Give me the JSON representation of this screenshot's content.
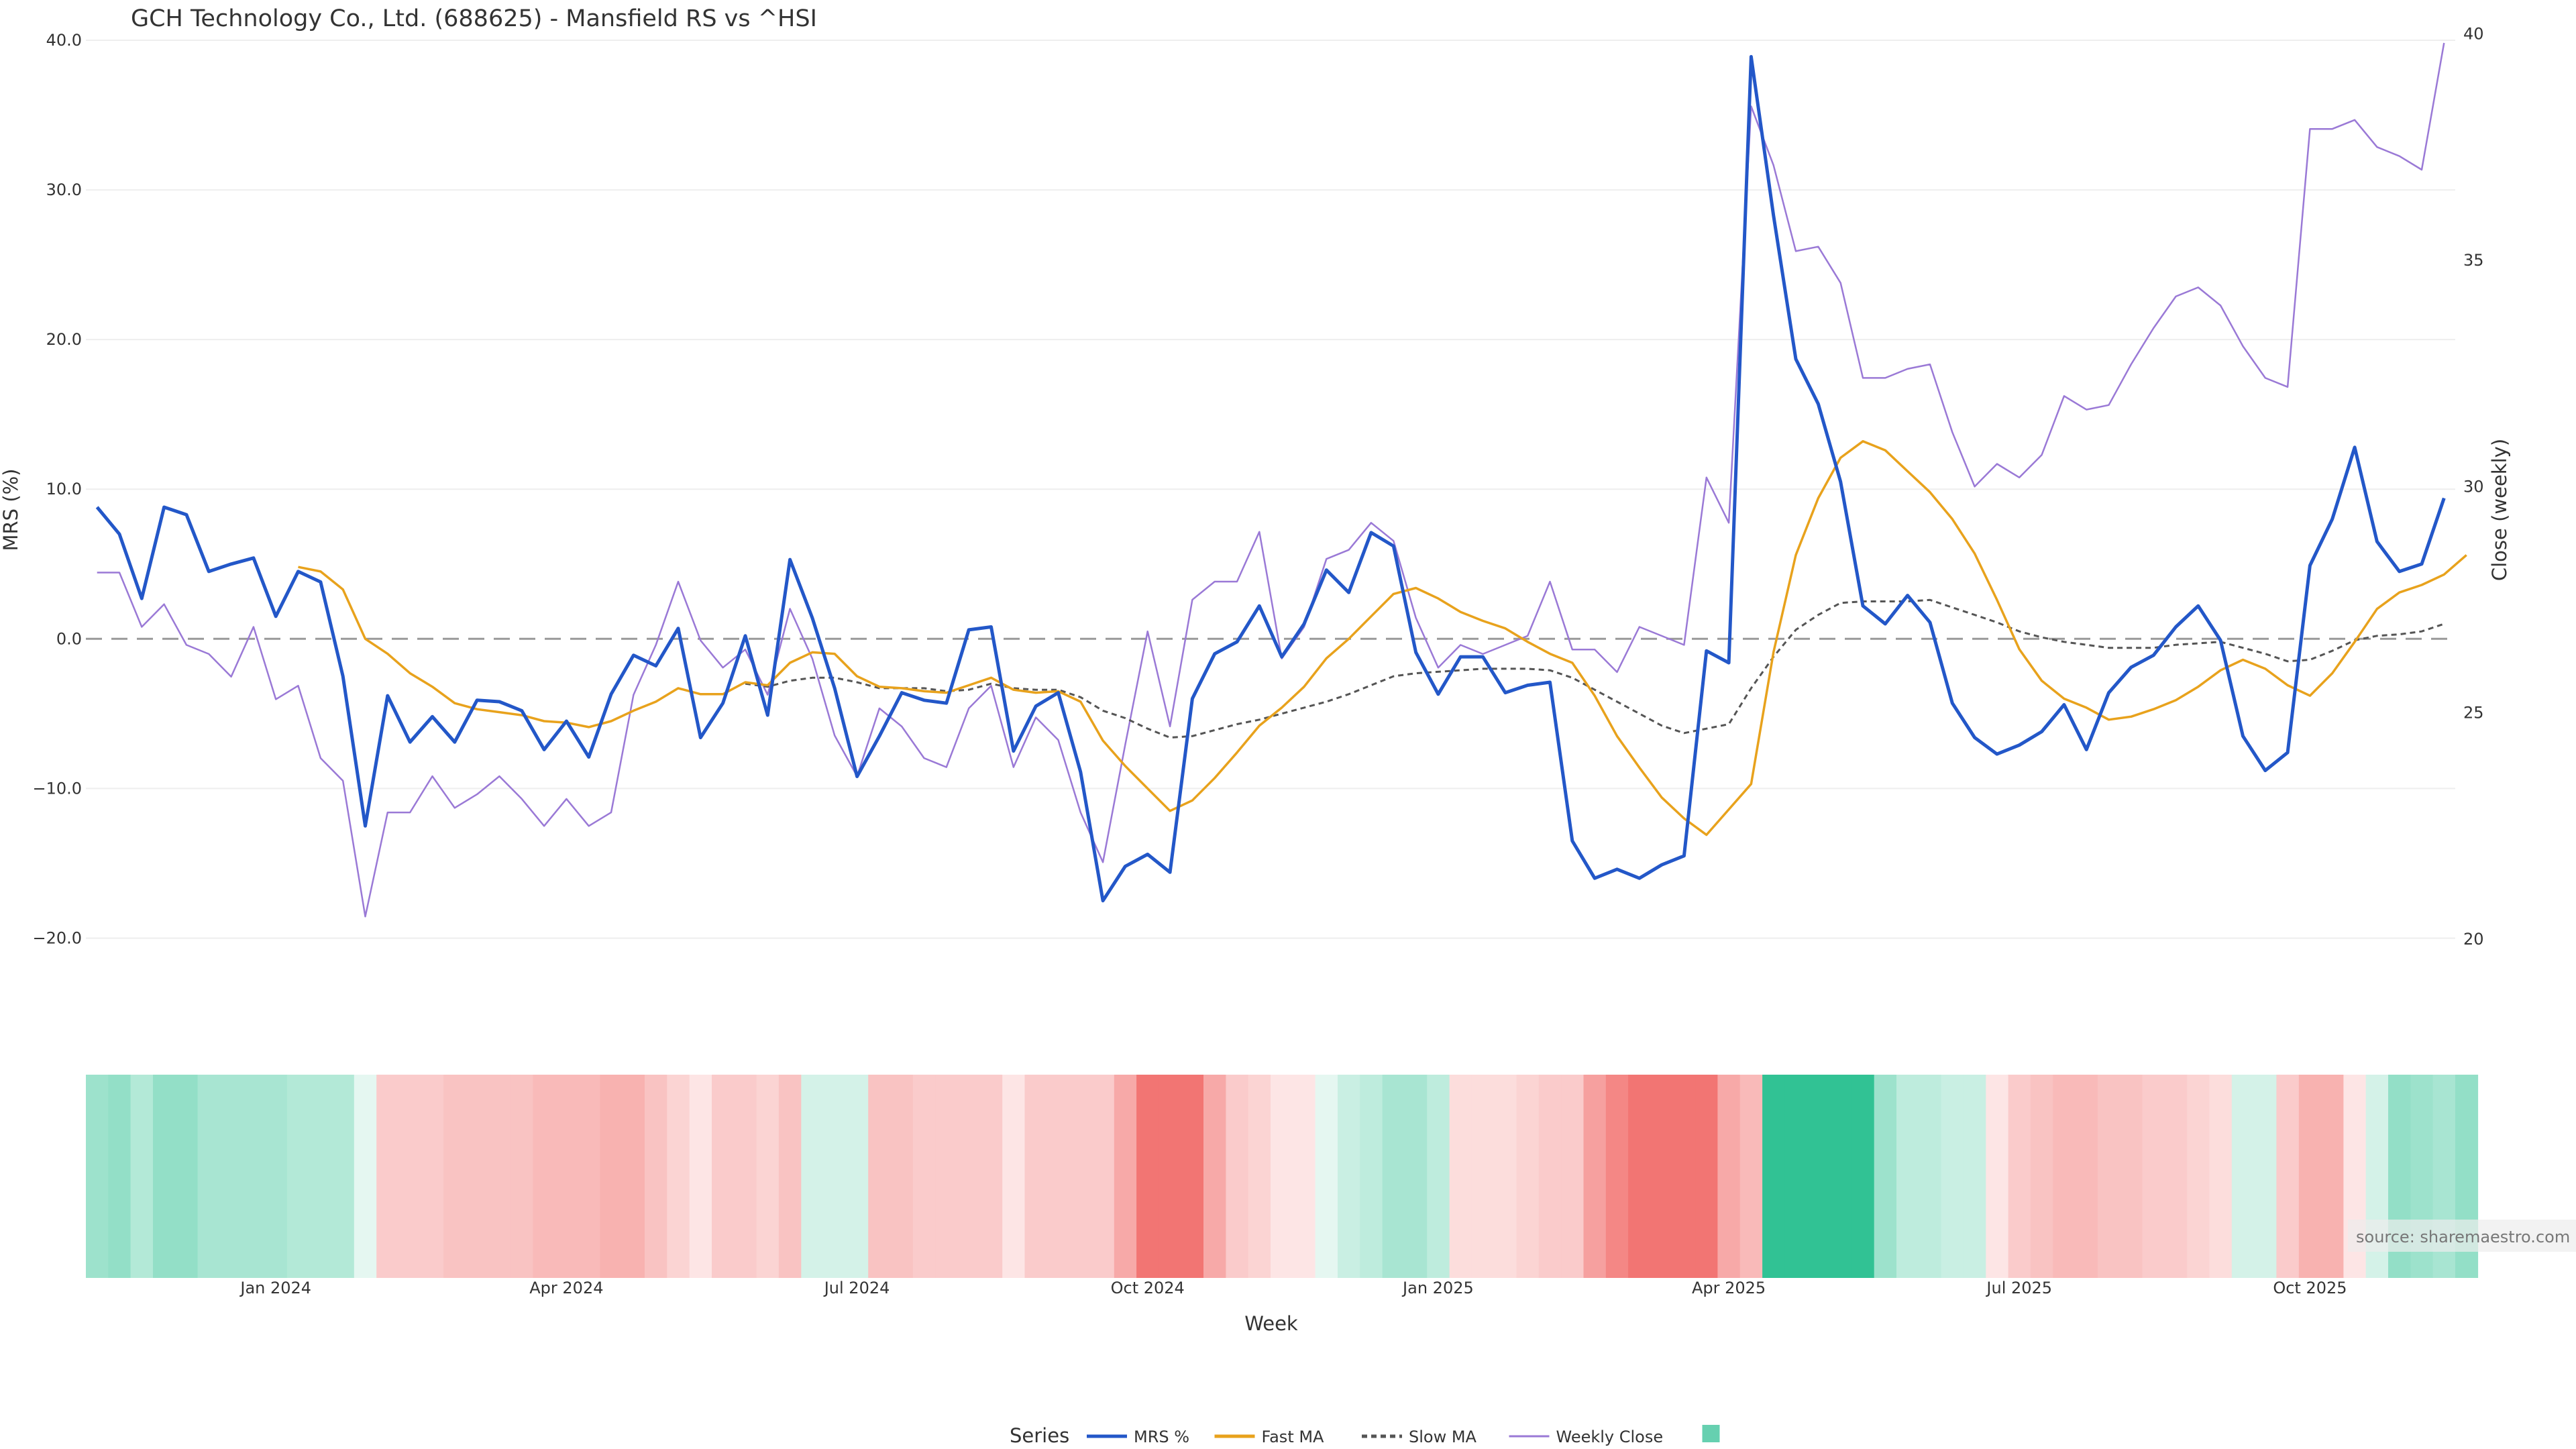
{
  "chart_data": {
    "type": "line",
    "title": "GCH Technology Co., Ltd. (688625) - Mansfield RS vs ^HSI",
    "xlabel": "Week",
    "ylabel_left": "MRS (%)",
    "ylabel_right": "Close (weekly)",
    "ylim_left": [
      -25,
      40
    ],
    "ylim_right": [
      18.37,
      39.86
    ],
    "yticks_left": [
      40,
      30,
      20,
      10,
      0,
      -10,
      -20
    ],
    "yticks_left_labels": [
      "40.0",
      "30.0",
      "20.0",
      "10.0",
      "0.0",
      "−10.0",
      "−20.0"
    ],
    "yticks_right": [
      40,
      35,
      30,
      25,
      20
    ],
    "yticks_right_labels": [
      "40",
      "35",
      "30",
      "25",
      "20"
    ],
    "xticks_labels": [
      "Jan 2024",
      "Apr 2024",
      "Jul 2024",
      "Oct 2024",
      "Jan 2025",
      "Apr 2025",
      "Jul 2025",
      "Oct 2025"
    ],
    "xticks_week_index": [
      8,
      21,
      34,
      47,
      60,
      73,
      86,
      99
    ],
    "zero_line": 0,
    "grid": true,
    "legend_position": "bottom-center",
    "legend_title": "Series",
    "source_note": "source: sharemaestro.com",
    "series": [
      {
        "name": "MRS %",
        "axis": "left",
        "color": "#2357c8",
        "values": [
          8.8,
          7.0,
          2.7,
          8.8,
          8.3,
          4.5,
          5.0,
          5.4,
          1.5,
          4.5,
          3.8,
          -2.5,
          -12.5,
          -3.8,
          -6.9,
          -5.2,
          -6.9,
          -4.1,
          -4.2,
          -4.8,
          -7.4,
          -5.5,
          -7.9,
          -3.7,
          -1.1,
          -1.8,
          0.7,
          -6.6,
          -4.3,
          0.2,
          -5.1,
          5.3,
          1.4,
          -3.3,
          -9.2,
          -6.5,
          -3.6,
          -4.1,
          -4.3,
          0.6,
          0.8,
          -7.5,
          -4.5,
          -3.6,
          -8.9,
          -17.5,
          -15.2,
          -14.4,
          -15.6,
          -4.0,
          -1.0,
          -0.2,
          2.2,
          -1.2,
          1.0,
          4.6,
          3.1,
          7.1,
          6.2,
          -0.9,
          -3.7,
          -1.2,
          -1.2,
          -3.6,
          -3.1,
          -2.9,
          -13.5,
          -16.0,
          -15.4,
          -16.0,
          -15.1,
          -14.5,
          -0.8,
          -1.6,
          38.9,
          28.3,
          18.7,
          15.7,
          10.5,
          2.2,
          1.0,
          2.9,
          1.1,
          -4.3,
          -6.6,
          -7.7,
          -7.1,
          -6.2,
          -4.4,
          -7.4,
          -3.6,
          -1.9,
          -1.1,
          0.8,
          2.2,
          -0.1,
          -6.5,
          -8.8,
          -7.6,
          4.9,
          8.0,
          12.8,
          6.5,
          4.5,
          5.0,
          9.4
        ]
      },
      {
        "name": "Fast MA",
        "axis": "left",
        "color": "#e8a21c",
        "values": [
          null,
          null,
          null,
          null,
          null,
          null,
          null,
          null,
          null,
          4.8,
          4.5,
          3.3,
          0.0,
          -1.0,
          -2.3,
          -3.2,
          -4.3,
          -4.7,
          -4.9,
          -5.1,
          -5.5,
          -5.6,
          -5.9,
          -5.5,
          -4.8,
          -4.2,
          -3.3,
          -3.7,
          -3.7,
          -2.9,
          -3.1,
          -1.6,
          -0.9,
          -1.0,
          -2.5,
          -3.2,
          -3.3,
          -3.5,
          -3.6,
          -3.1,
          -2.6,
          -3.4,
          -3.6,
          -3.5,
          -4.2,
          -6.8,
          -8.5,
          -10.0,
          -11.5,
          -10.8,
          -9.3,
          -7.6,
          -5.8,
          -4.6,
          -3.2,
          -1.3,
          0.0,
          1.5,
          3.0,
          3.4,
          2.7,
          1.8,
          1.2,
          0.7,
          -0.2,
          -1.0,
          -1.6,
          -3.8,
          -6.5,
          -8.6,
          -10.6,
          -12.0,
          -13.1,
          -11.4,
          -9.7,
          -0.9,
          5.6,
          9.4,
          12.1,
          13.2,
          12.6,
          11.2,
          9.8,
          8.0,
          5.7,
          2.6,
          -0.7,
          -2.8,
          -4.0,
          -4.6,
          -5.4,
          -5.2,
          -4.7,
          -4.1,
          -3.2,
          -2.1,
          -1.4,
          -2.0,
          -3.1,
          -3.8,
          -2.3,
          -0.2,
          2.0,
          3.1,
          3.6,
          4.3,
          5.6
        ]
      },
      {
        "name": "Slow MA",
        "axis": "left",
        "color": "#555555",
        "dash": true,
        "values": [
          null,
          null,
          null,
          null,
          null,
          null,
          null,
          null,
          null,
          null,
          null,
          null,
          null,
          null,
          null,
          null,
          null,
          null,
          null,
          null,
          null,
          null,
          null,
          null,
          null,
          null,
          null,
          null,
          null,
          -3.0,
          -3.2,
          -2.8,
          -2.6,
          -2.6,
          -2.9,
          -3.3,
          -3.3,
          -3.3,
          -3.5,
          -3.4,
          -3.0,
          -3.3,
          -3.4,
          -3.4,
          -3.9,
          -4.8,
          -5.3,
          -6.0,
          -6.6,
          -6.5,
          -6.1,
          -5.7,
          -5.4,
          -5.0,
          -4.6,
          -4.2,
          -3.7,
          -3.1,
          -2.5,
          -2.3,
          -2.2,
          -2.1,
          -2.0,
          -2.0,
          -2.0,
          -2.1,
          -2.6,
          -3.4,
          -4.2,
          -5.0,
          -5.8,
          -6.3,
          -6.0,
          -5.7,
          -3.3,
          -1.2,
          0.6,
          1.6,
          2.4,
          2.5,
          2.5,
          2.5,
          2.6,
          2.1,
          1.6,
          1.1,
          0.5,
          0.1,
          -0.2,
          -0.4,
          -0.6,
          -0.6,
          -0.6,
          -0.4,
          -0.3,
          -0.2,
          -0.6,
          -1.0,
          -1.5,
          -1.4,
          -0.8,
          -0.1,
          0.2,
          0.3,
          0.5,
          1.0
        ]
      },
      {
        "name": "Weekly Close",
        "axis": "right",
        "color": "#9a79d6",
        "values": [
          28.1,
          28.1,
          26.9,
          27.4,
          26.5,
          26.3,
          25.8,
          26.9,
          25.3,
          25.6,
          24.0,
          23.5,
          20.5,
          22.8,
          22.8,
          23.6,
          22.9,
          23.2,
          23.6,
          23.1,
          22.5,
          23.1,
          22.5,
          22.8,
          25.4,
          26.5,
          27.9,
          26.6,
          26.0,
          26.4,
          25.4,
          27.3,
          26.2,
          24.5,
          23.6,
          25.1,
          24.7,
          24.0,
          23.8,
          25.1,
          25.6,
          23.8,
          24.9,
          24.4,
          22.8,
          21.7,
          24.3,
          26.8,
          24.7,
          27.5,
          27.9,
          27.9,
          29.0,
          26.2,
          26.9,
          28.4,
          28.6,
          29.2,
          28.8,
          27.1,
          26.0,
          26.5,
          26.3,
          26.5,
          26.7,
          27.9,
          26.4,
          26.4,
          25.9,
          26.9,
          26.7,
          26.5,
          30.2,
          29.2,
          38.4,
          37.1,
          35.2,
          35.3,
          34.5,
          32.4,
          32.4,
          32.6,
          32.7,
          31.2,
          30.0,
          30.5,
          30.2,
          30.7,
          32.0,
          31.7,
          31.8,
          32.7,
          33.5,
          34.2,
          34.4,
          34.0,
          33.1,
          32.4,
          32.2,
          37.9,
          37.9,
          38.1,
          37.5,
          37.3,
          37.0,
          39.8
        ]
      }
    ],
    "heat_strip": {
      "values": [
        0.45,
        0.5,
        0.35,
        0.5,
        0.5,
        0.4,
        0.4,
        0.4,
        0.4,
        0.35,
        0.35,
        0.35,
        0.12,
        -0.3,
        -0.3,
        -0.3,
        -0.35,
        -0.35,
        -0.35,
        -0.35,
        -0.4,
        -0.4,
        -0.4,
        -0.45,
        -0.45,
        -0.35,
        -0.25,
        -0.15,
        -0.3,
        -0.3,
        -0.25,
        -0.35,
        0.2,
        0.2,
        0.2,
        -0.35,
        -0.35,
        -0.3,
        -0.3,
        -0.3,
        -0.3,
        -0.15,
        -0.3,
        -0.3,
        -0.3,
        -0.3,
        -0.5,
        -0.8,
        -0.8,
        -0.8,
        -0.5,
        -0.3,
        -0.25,
        -0.15,
        -0.15,
        0.12,
        0.25,
        0.3,
        0.4,
        0.4,
        0.3,
        -0.2,
        -0.2,
        -0.2,
        -0.25,
        -0.3,
        -0.3,
        -0.55,
        -0.7,
        -0.8,
        -0.8,
        -0.8,
        -0.8,
        -0.5,
        -0.4,
        0.95,
        0.95,
        0.95,
        0.95,
        0.95,
        0.45,
        0.3,
        0.3,
        0.25,
        0.25,
        -0.15,
        -0.3,
        -0.35,
        -0.4,
        -0.4,
        -0.35,
        -0.35,
        -0.3,
        -0.3,
        -0.25,
        -0.2,
        0.2,
        0.2,
        -0.3,
        -0.45,
        -0.45,
        -0.15,
        0.2,
        0.5,
        0.45,
        0.4,
        0.5
      ]
    }
  }
}
